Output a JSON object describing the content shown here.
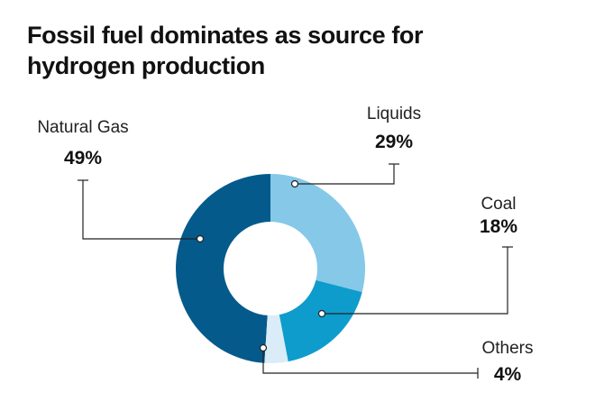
{
  "chart_data": {
    "type": "donut",
    "title": "Fossil fuel dominates as source for hydrogen production",
    "categories": [
      "Natural Gas",
      "Liquids",
      "Coal",
      "Others"
    ],
    "values": [
      49,
      29,
      18,
      4
    ],
    "value_labels": [
      "49%",
      "29%",
      "18%",
      "4%"
    ],
    "colors": [
      "#055a8c",
      "#85c8e8",
      "#0e9ccc",
      "#d9ecf7"
    ]
  }
}
